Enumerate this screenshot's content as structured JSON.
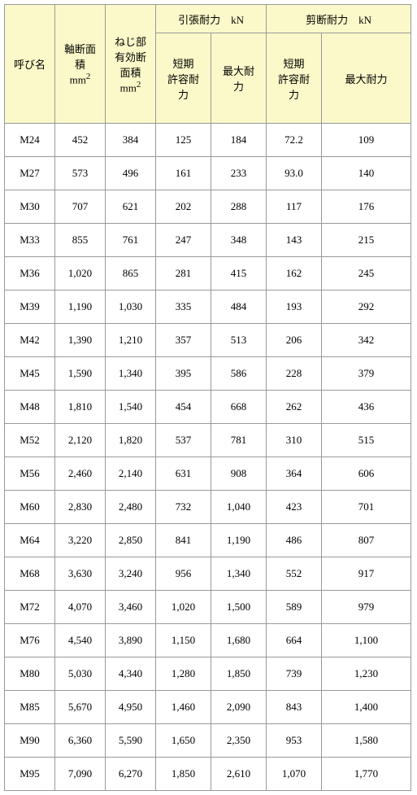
{
  "table": {
    "header_bg": "#fbf9c9",
    "border_color": "#999999",
    "font": "MS Mincho",
    "fontsize": 13,
    "columns": {
      "name": "呼び名",
      "area": "軸断面積\nmm²",
      "eff_area": "ねじ部有効断面積\nmm²",
      "tension_group": "引張耐力　kN",
      "tension_short": "短期許容耐力",
      "tension_max": "最大耐力",
      "shear_group": "剪断耐力　kN",
      "shear_short": "短期許容耐力",
      "shear_max": "最大耐力"
    },
    "rows": [
      {
        "name": "M24",
        "area": "452",
        "eff": "384",
        "t_short": "125",
        "t_max": "184",
        "s_short": "72.2",
        "s_max": "109"
      },
      {
        "name": "M27",
        "area": "573",
        "eff": "496",
        "t_short": "161",
        "t_max": "233",
        "s_short": "93.0",
        "s_max": "140"
      },
      {
        "name": "M30",
        "area": "707",
        "eff": "621",
        "t_short": "202",
        "t_max": "288",
        "s_short": "117",
        "s_max": "176"
      },
      {
        "name": "M33",
        "area": "855",
        "eff": "761",
        "t_short": "247",
        "t_max": "348",
        "s_short": "143",
        "s_max": "215"
      },
      {
        "name": "M36",
        "area": "1,020",
        "eff": "865",
        "t_short": "281",
        "t_max": "415",
        "s_short": "162",
        "s_max": "245"
      },
      {
        "name": "M39",
        "area": "1,190",
        "eff": "1,030",
        "t_short": "335",
        "t_max": "484",
        "s_short": "193",
        "s_max": "292"
      },
      {
        "name": "M42",
        "area": "1,390",
        "eff": "1,210",
        "t_short": "357",
        "t_max": "513",
        "s_short": "206",
        "s_max": "342"
      },
      {
        "name": "M45",
        "area": "1,590",
        "eff": "1,340",
        "t_short": "395",
        "t_max": "586",
        "s_short": "228",
        "s_max": "379"
      },
      {
        "name": "M48",
        "area": "1,810",
        "eff": "1,540",
        "t_short": "454",
        "t_max": "668",
        "s_short": "262",
        "s_max": "436"
      },
      {
        "name": "M52",
        "area": "2,120",
        "eff": "1,820",
        "t_short": "537",
        "t_max": "781",
        "s_short": "310",
        "s_max": "515"
      },
      {
        "name": "M56",
        "area": "2,460",
        "eff": "2,140",
        "t_short": "631",
        "t_max": "908",
        "s_short": "364",
        "s_max": "606"
      },
      {
        "name": "M60",
        "area": "2,830",
        "eff": "2,480",
        "t_short": "732",
        "t_max": "1,040",
        "s_short": "423",
        "s_max": "701"
      },
      {
        "name": "M64",
        "area": "3,220",
        "eff": "2,850",
        "t_short": "841",
        "t_max": "1,190",
        "s_short": "486",
        "s_max": "807"
      },
      {
        "name": "M68",
        "area": "3,630",
        "eff": "3,240",
        "t_short": "956",
        "t_max": "1,340",
        "s_short": "552",
        "s_max": "917"
      },
      {
        "name": "M72",
        "area": "4,070",
        "eff": "3,460",
        "t_short": "1,020",
        "t_max": "1,500",
        "s_short": "589",
        "s_max": "979"
      },
      {
        "name": "M76",
        "area": "4,540",
        "eff": "3,890",
        "t_short": "1,150",
        "t_max": "1,680",
        "s_short": "664",
        "s_max": "1,100"
      },
      {
        "name": "M80",
        "area": "5,030",
        "eff": "4,340",
        "t_short": "1,280",
        "t_max": "1,850",
        "s_short": "739",
        "s_max": "1,230"
      },
      {
        "name": "M85",
        "area": "5,670",
        "eff": "4,950",
        "t_short": "1,460",
        "t_max": "2,090",
        "s_short": "843",
        "s_max": "1,400"
      },
      {
        "name": "M90",
        "area": "6,360",
        "eff": "5,590",
        "t_short": "1,650",
        "t_max": "2,350",
        "s_short": "953",
        "s_max": "1,580"
      },
      {
        "name": "M95",
        "area": "7,090",
        "eff": "6,270",
        "t_short": "1,850",
        "t_max": "2,610",
        "s_short": "1,070",
        "s_max": "1,770"
      }
    ]
  }
}
